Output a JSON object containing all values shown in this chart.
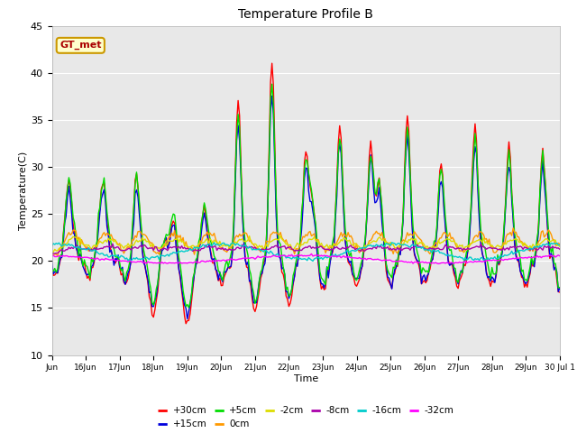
{
  "title": "Temperature Profile B",
  "xlabel": "Time",
  "ylabel": "Temperature(C)",
  "ylim": [
    10,
    45
  ],
  "xlim": [
    0,
    360
  ],
  "plot_bg": "#e8e8e8",
  "series_colors": {
    "+30cm": "#ff0000",
    "+15cm": "#0000dd",
    "+5cm": "#00dd00",
    "0cm": "#ff9900",
    "-2cm": "#dddd00",
    "-8cm": "#aa00aa",
    "-16cm": "#00cccc",
    "-32cm": "#ff00ff"
  },
  "legend_label": "GT_met",
  "legend_bg": "#ffffcc",
  "legend_border": "#cc9900",
  "xtick_labels": [
    "Jun",
    "16Jun",
    "17Jun",
    "18Jun",
    "19Jun",
    "20Jun",
    "21Jun",
    "22Jun",
    "23Jun",
    "24Jun",
    "25Jun",
    "26Jun",
    "27Jun",
    "28Jun",
    "29Jun",
    "30 Jul 1"
  ],
  "ytick_labels": [
    "10",
    "15",
    "20",
    "25",
    "30",
    "35",
    "40",
    "45"
  ],
  "ytick_vals": [
    10,
    15,
    20,
    25,
    30,
    35,
    40,
    45
  ]
}
